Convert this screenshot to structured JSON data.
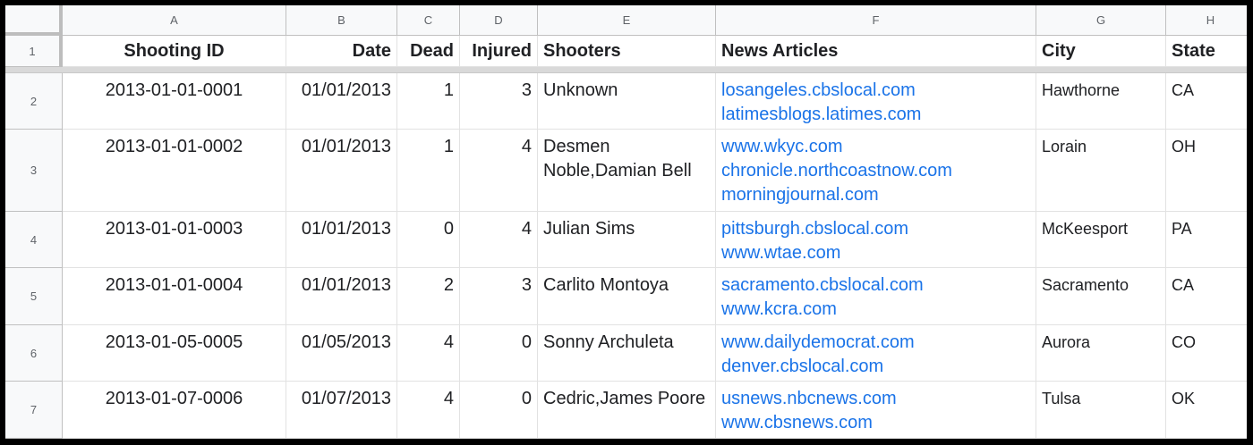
{
  "columns": [
    "A",
    "B",
    "C",
    "D",
    "E",
    "F",
    "G",
    "H"
  ],
  "row_numbers": [
    "1",
    "2",
    "3",
    "4",
    "5",
    "6",
    "7"
  ],
  "headers": {
    "shooting_id": "Shooting ID",
    "date": "Date",
    "dead": "Dead",
    "injured": "Injured",
    "shooters": "Shooters",
    "news": "News Articles",
    "city": "City",
    "state": "State"
  },
  "rows": [
    {
      "id": "2013-01-01-0001",
      "date": "01/01/2013",
      "dead": "1",
      "injured": "3",
      "shooters": "Unknown",
      "news": [
        "losangeles.cbslocal.com",
        "latimesblogs.latimes.com"
      ],
      "city": "Hawthorne",
      "state": "CA"
    },
    {
      "id": "2013-01-01-0002",
      "date": "01/01/2013",
      "dead": "1",
      "injured": "4",
      "shooters": "Desmen Noble,Damian Bell",
      "news": [
        "www.wkyc.com",
        "chronicle.northcoastnow.com",
        "morningjournal.com"
      ],
      "city": "Lorain",
      "state": "OH"
    },
    {
      "id": "2013-01-01-0003",
      "date": "01/01/2013",
      "dead": "0",
      "injured": "4",
      "shooters": "Julian Sims",
      "news": [
        "pittsburgh.cbslocal.com",
        "www.wtae.com"
      ],
      "city": "McKeesport",
      "state": "PA"
    },
    {
      "id": "2013-01-01-0004",
      "date": "01/01/2013",
      "dead": "2",
      "injured": "3",
      "shooters": "Carlito Montoya",
      "news": [
        "sacramento.cbslocal.com",
        "www.kcra.com"
      ],
      "city": "Sacramento",
      "state": "CA"
    },
    {
      "id": "2013-01-05-0005",
      "date": "01/05/2013",
      "dead": "4",
      "injured": "0",
      "shooters": "Sonny Archuleta",
      "news": [
        "www.dailydemocrat.com",
        "denver.cbslocal.com"
      ],
      "city": "Aurora",
      "state": "CO"
    },
    {
      "id": "2013-01-07-0006",
      "date": "01/07/2013",
      "dead": "4",
      "injured": "0",
      "shooters": "Cedric,James Poore",
      "news": [
        "usnews.nbcnews.com",
        "www.cbsnews.com"
      ],
      "city": "Tulsa",
      "state": "OK"
    }
  ],
  "colors": {
    "link": "#1a73e8",
    "header_bg": "#f8f9fa",
    "freeze_bar": "#d9d9d9"
  }
}
